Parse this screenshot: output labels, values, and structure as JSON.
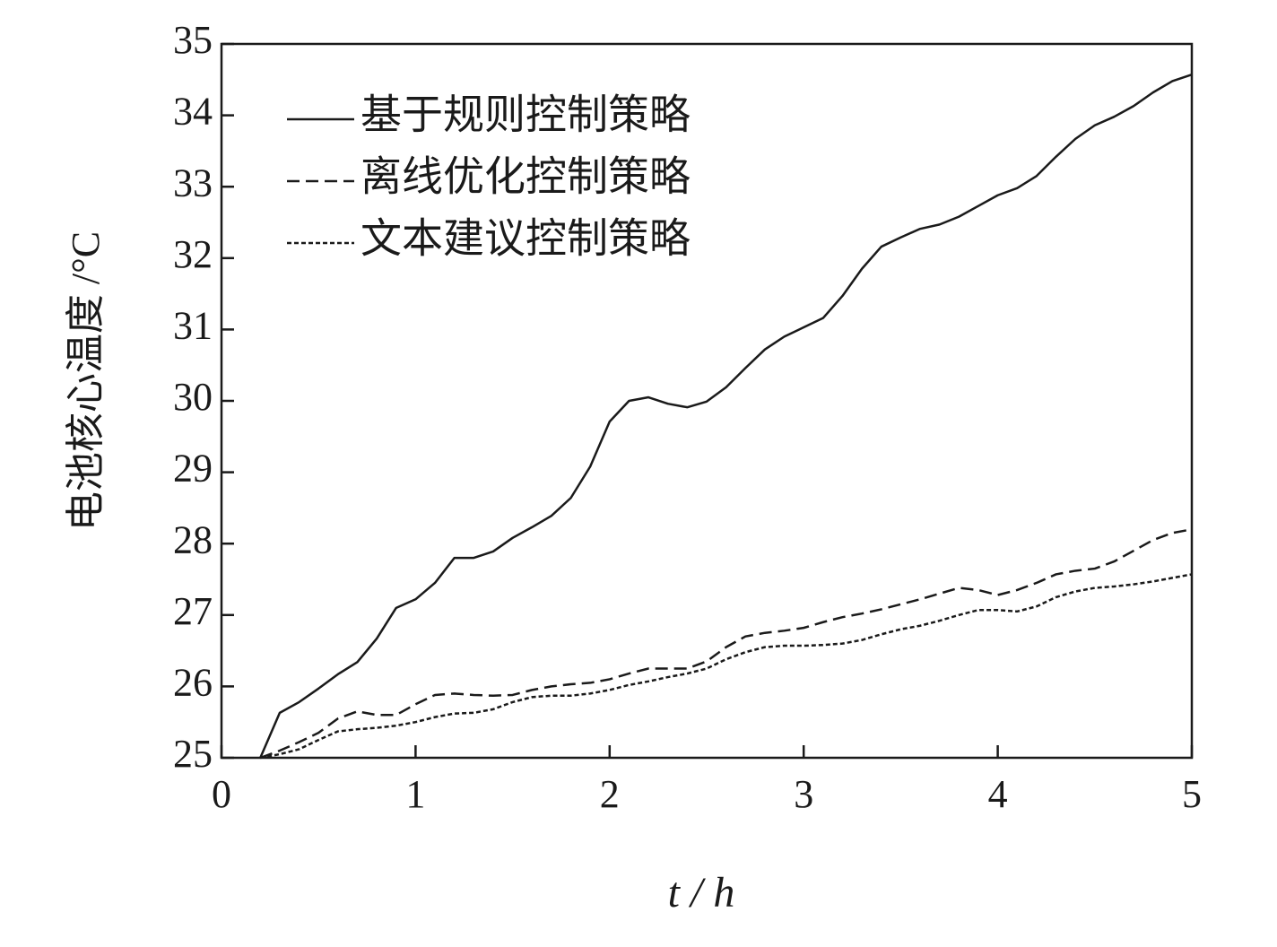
{
  "chart_data": {
    "type": "line",
    "xlabel": "t / h",
    "ylabel": "电池核心温度 /°C",
    "xlim": [
      0,
      5
    ],
    "xticks": [
      0,
      1,
      2,
      3,
      4,
      5
    ],
    "ylim": [
      25,
      35
    ],
    "yticks": [
      25,
      26,
      27,
      28,
      29,
      30,
      31,
      32,
      33,
      34,
      35
    ],
    "legend": "upper left",
    "x": [
      0.2,
      0.3,
      0.4,
      0.5,
      0.6,
      0.7,
      0.8,
      0.9,
      1.0,
      1.1,
      1.2,
      1.3,
      1.4,
      1.5,
      1.6,
      1.7,
      1.8,
      1.9,
      2.0,
      2.1,
      2.2,
      2.3,
      2.4,
      2.5,
      2.6,
      2.7,
      2.8,
      2.9,
      3.0,
      3.1,
      3.2,
      3.3,
      3.4,
      3.5,
      3.6,
      3.7,
      3.8,
      3.9,
      4.0,
      4.1,
      4.2,
      4.3,
      4.4,
      4.5,
      4.6,
      4.7,
      4.8,
      4.9,
      5.0
    ],
    "series": [
      {
        "name": "基于规则控制策略",
        "color": "#1a1a1a",
        "linestyle": "solid",
        "values": [
          25.0,
          25.63,
          25.78,
          25.97,
          26.17,
          26.34,
          26.67,
          27.1,
          27.22,
          27.45,
          27.8,
          27.8,
          27.89,
          28.08,
          28.23,
          28.39,
          28.64,
          29.08,
          29.71,
          30.0,
          30.05,
          29.96,
          29.91,
          29.99,
          30.19,
          30.46,
          30.72,
          30.9,
          31.03,
          31.16,
          31.47,
          31.85,
          32.16,
          32.29,
          32.41,
          32.47,
          32.58,
          32.73,
          32.88,
          32.98,
          33.15,
          33.42,
          33.67,
          33.86,
          33.98,
          34.13,
          34.32,
          34.48,
          34.57
        ]
      },
      {
        "name": "离线优化控制策略",
        "color": "#1a1a1a",
        "linestyle": "dashed",
        "values": [
          25.0,
          25.1,
          25.22,
          25.35,
          25.55,
          25.65,
          25.6,
          25.6,
          25.75,
          25.88,
          25.9,
          25.88,
          25.87,
          25.88,
          25.95,
          26.0,
          26.03,
          26.05,
          26.1,
          26.18,
          26.25,
          26.25,
          26.25,
          26.35,
          26.55,
          26.7,
          26.75,
          26.78,
          26.82,
          26.9,
          26.97,
          27.02,
          27.08,
          27.15,
          27.22,
          27.3,
          27.38,
          27.35,
          27.28,
          27.35,
          27.45,
          27.57,
          27.62,
          27.65,
          27.75,
          27.9,
          28.05,
          28.15,
          28.2
        ]
      },
      {
        "name": "文本建议控制策略",
        "color": "#1a1a1a",
        "linestyle": "dotted",
        "values": [
          25.0,
          25.05,
          25.12,
          25.25,
          25.37,
          25.4,
          25.42,
          25.45,
          25.5,
          25.57,
          25.62,
          25.63,
          25.68,
          25.78,
          25.85,
          25.87,
          25.87,
          25.9,
          25.95,
          26.02,
          26.07,
          26.13,
          26.18,
          26.25,
          26.38,
          26.48,
          26.55,
          26.57,
          26.57,
          26.58,
          26.6,
          26.65,
          26.73,
          26.8,
          26.85,
          26.92,
          27.0,
          27.07,
          27.07,
          27.05,
          27.12,
          27.25,
          27.33,
          27.38,
          27.4,
          27.43,
          27.47,
          27.52,
          27.57
        ]
      }
    ]
  }
}
